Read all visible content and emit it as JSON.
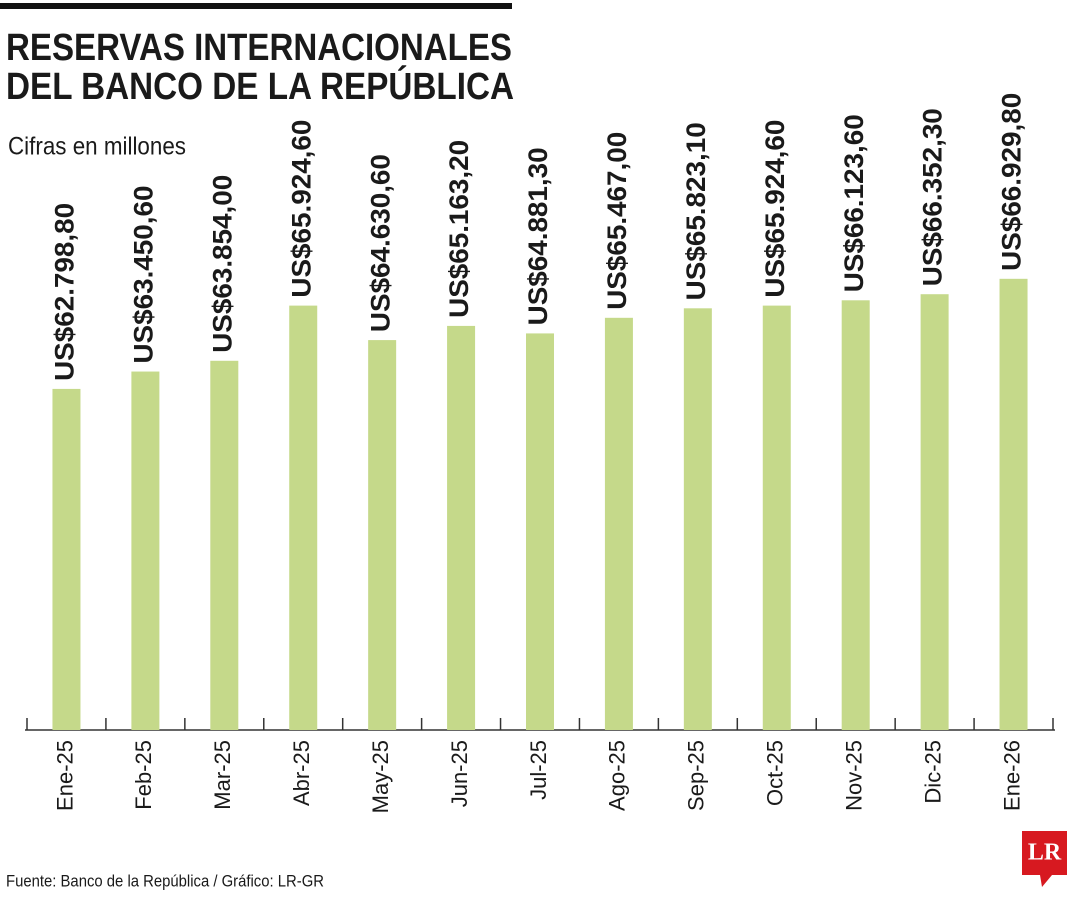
{
  "chart_data": {
    "type": "bar",
    "title": [
      "RESERVAS INTERNACIONALES",
      "DEL BANCO DE LA REPÚBLICA"
    ],
    "subtitle": "Cifras en millones",
    "source": "Fuente: Banco de la República / Gráfico: LR-GR",
    "logo": "LR",
    "categories": [
      "Ene-25",
      "Feb-25",
      "Mar-25",
      "Abr-25",
      "May-25",
      "Jun-25",
      "Jul-25",
      "Ago-25",
      "Sep-25",
      "Oct-25",
      "Nov-25",
      "Dic-25",
      "Ene-26"
    ],
    "values": [
      62798.8,
      63450.6,
      63854.0,
      65924.6,
      64630.6,
      65163.2,
      64881.3,
      65467.0,
      65823.1,
      65924.6,
      66123.6,
      66352.3,
      66929.8
    ],
    "value_labels": [
      "US$62.798,80",
      "US$63.450,60",
      "US$63.854,00",
      "US$65.924,60",
      "US$64.630,60",
      "US$65.163,20",
      "US$64.881,30",
      "US$65.467,00",
      "US$65.823,10",
      "US$65.924,60",
      "US$66.123,60",
      "US$66.352,30",
      "US$66.929,80"
    ],
    "color": "#c5d98a",
    "ylim": [
      50000,
      70000
    ]
  }
}
